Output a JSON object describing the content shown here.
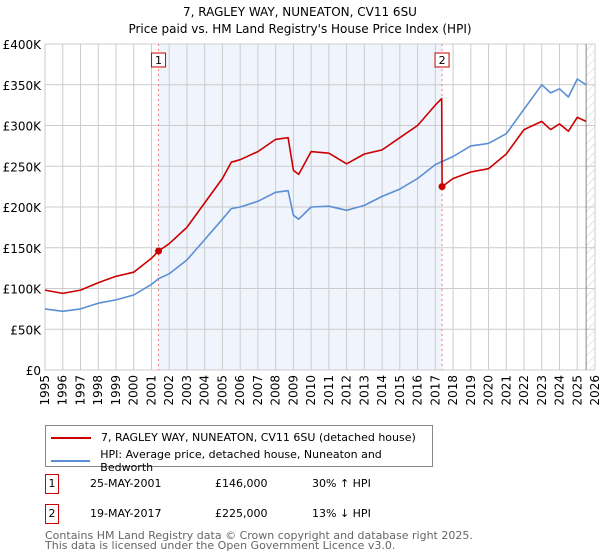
{
  "chart_data": {
    "type": "line",
    "title": "7, RAGLEY WAY, NUNEATON, CV11 6SU",
    "subtitle": "Price paid vs. HM Land Registry's House Price Index (HPI)",
    "xlim": [
      1995,
      2026
    ],
    "ylim": [
      0,
      400000
    ],
    "yticks": [
      {
        "v": 0,
        "label": "£0"
      },
      {
        "v": 50000,
        "label": "£50K"
      },
      {
        "v": 100000,
        "label": "£100K"
      },
      {
        "v": 150000,
        "label": "£150K"
      },
      {
        "v": 200000,
        "label": "£200K"
      },
      {
        "v": 250000,
        "label": "£250K"
      },
      {
        "v": 300000,
        "label": "£300K"
      },
      {
        "v": 350000,
        "label": "£350K"
      },
      {
        "v": 400000,
        "label": "£400K"
      }
    ],
    "xticks": [
      "1995",
      "1996",
      "1997",
      "1998",
      "1999",
      "2000",
      "2001",
      "2002",
      "2003",
      "2004",
      "2005",
      "2006",
      "2007",
      "2008",
      "2009",
      "2010",
      "2011",
      "2012",
      "2013",
      "2014",
      "2015",
      "2016",
      "2017",
      "2018",
      "2019",
      "2020",
      "2021",
      "2022",
      "2023",
      "2024",
      "2025",
      "2026"
    ],
    "grid": true,
    "shaded_range": [
      2001.4,
      2017.38
    ],
    "hatched_from": 2025.5,
    "series": [
      {
        "name": "7, RAGLEY WAY, NUNEATON, CV11 6SU (detached house)",
        "color": "#cc0000",
        "x": [
          1995,
          1996,
          1997,
          1998,
          1999,
          2000,
          2001,
          2001.4,
          2002,
          2003,
          2004,
          2005,
          2005.5,
          2006,
          2007,
          2008,
          2008.7,
          2009,
          2009.3,
          2010,
          2011,
          2012,
          2013,
          2014,
          2015,
          2016,
          2017,
          2017.36,
          2017.38,
          2018,
          2019,
          2020,
          2021,
          2022,
          2023,
          2023.5,
          2024,
          2024.5,
          2025,
          2025.5
        ],
        "y": [
          98000,
          94000,
          98000,
          107000,
          115000,
          120000,
          137000,
          146000,
          155000,
          175000,
          205000,
          235000,
          255000,
          258000,
          268000,
          283000,
          285000,
          245000,
          240000,
          268000,
          266000,
          253000,
          265000,
          270000,
          285000,
          300000,
          325000,
          333000,
          225000,
          235000,
          243000,
          247000,
          265000,
          295000,
          305000,
          295000,
          302000,
          293000,
          310000,
          305000
        ]
      },
      {
        "name": "HPI: Average price, detached house, Nuneaton and Bedworth",
        "color": "#5b8fd4",
        "x": [
          1995,
          1996,
          1997,
          1998,
          1999,
          2000,
          2001,
          2001.4,
          2002,
          2003,
          2004,
          2005,
          2005.5,
          2006,
          2007,
          2008,
          2008.7,
          2009,
          2009.3,
          2010,
          2011,
          2012,
          2013,
          2014,
          2015,
          2016,
          2017,
          2017.4,
          2018,
          2019,
          2020,
          2021,
          2022,
          2023,
          2023.5,
          2024,
          2024.5,
          2025,
          2025.5
        ],
        "y": [
          75000,
          72000,
          75000,
          82000,
          86000,
          92000,
          105000,
          112000,
          118000,
          135000,
          160000,
          185000,
          198000,
          200000,
          207000,
          218000,
          220000,
          190000,
          185000,
          200000,
          201000,
          196000,
          202000,
          213000,
          222000,
          235000,
          252000,
          256000,
          262000,
          275000,
          278000,
          290000,
          320000,
          350000,
          340000,
          345000,
          335000,
          357000,
          350000
        ]
      }
    ],
    "markers": [
      {
        "id": "1",
        "x": 2001.4,
        "y": 146000
      },
      {
        "id": "2",
        "x": 2017.38,
        "y": 225000
      }
    ]
  },
  "legend": {
    "red_label": "7, RAGLEY WAY, NUNEATON, CV11 6SU (detached house)",
    "blue_label": "HPI: Average price, detached house, Nuneaton and Bedworth"
  },
  "sales": [
    {
      "num": "1",
      "date": "25-MAY-2001",
      "price": "£146,000",
      "hpi": "30% ↑ HPI"
    },
    {
      "num": "2",
      "date": "19-MAY-2017",
      "price": "£225,000",
      "hpi": "13% ↓ HPI"
    }
  ],
  "footer": {
    "line1": "Contains HM Land Registry data © Crown copyright and database right 2025.",
    "line2": "This data is licensed under the Open Government Licence v3.0."
  }
}
